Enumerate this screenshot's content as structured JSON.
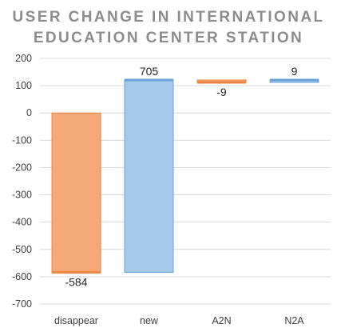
{
  "chart_data": {
    "type": "waterfall",
    "title": "USER CHANGE IN INTERNATIONAL EDUCATION CENTER STATION",
    "title_lines": [
      "USER CHANGE IN INTERNATIONAL",
      "EDUCATION CENTER STATION"
    ],
    "categories": [
      "disappear",
      "new",
      "A2N",
      "N2A"
    ],
    "data_labels": [
      "-584",
      "705",
      "-9",
      "9"
    ],
    "bars": [
      {
        "category": "disappear",
        "start": 0,
        "end": -584,
        "value": -584,
        "color": "#f4a977",
        "edge": "#ed8440"
      },
      {
        "category": "new",
        "start": -584,
        "end": 121,
        "value": 705,
        "color": "#a7c9ec",
        "edge": "#6a9fd8"
      },
      {
        "category": "A2N",
        "start": 121,
        "end": 112,
        "value": -9,
        "color": "#f4a977",
        "edge": "#ed8440"
      },
      {
        "category": "N2A",
        "start": 112,
        "end": 121,
        "value": 9,
        "color": "#a7c9ec",
        "edge": "#6a9fd8"
      }
    ],
    "ylim": [
      -700,
      200
    ],
    "yticks": [
      200,
      100,
      0,
      -100,
      -200,
      -300,
      -400,
      -500,
      -600,
      -700
    ],
    "grid": true,
    "legend": "none",
    "xlabel": "",
    "ylabel": ""
  }
}
